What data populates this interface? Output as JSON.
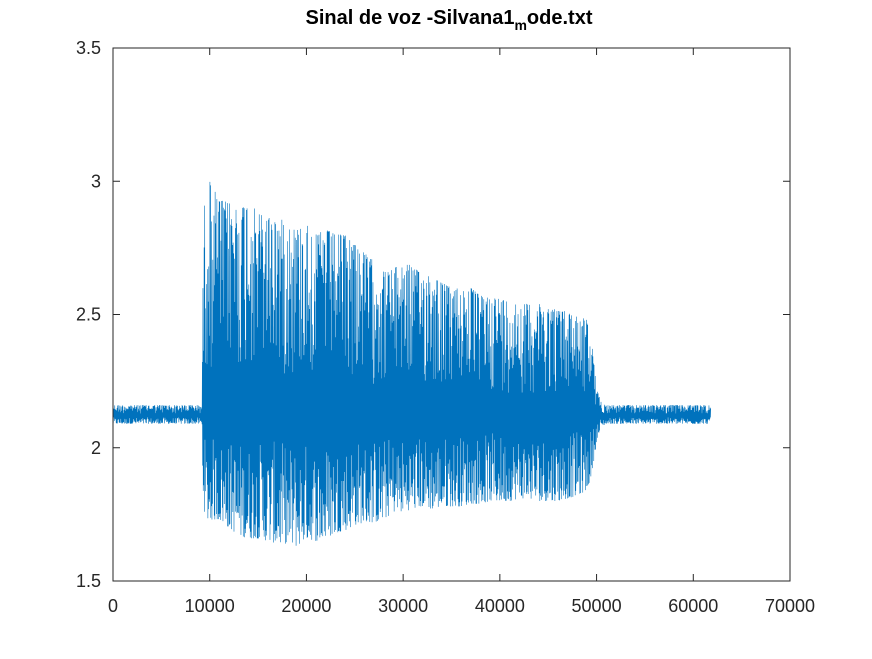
{
  "chart_data": {
    "type": "line",
    "title": "Sinal de voz -Silvana1",
    "title_subscript": "m",
    "title_suffix": "ode.txt",
    "xlabel": "",
    "ylabel": "",
    "xlim": [
      0,
      70000
    ],
    "ylim": [
      1.5,
      3.5
    ],
    "xticks": [
      0,
      10000,
      20000,
      30000,
      40000,
      50000,
      60000,
      70000
    ],
    "yticks": [
      1.5,
      2,
      2.5,
      3,
      3.5
    ],
    "xtick_labels": [
      "0",
      "10000",
      "20000",
      "30000",
      "40000",
      "50000",
      "60000",
      "70000"
    ],
    "ytick_labels": [
      "1.5",
      "2",
      "2.5",
      "3",
      "3.5"
    ],
    "grid": false,
    "legend": "none",
    "series_color": "#0072BD",
    "series": [
      {
        "samples": 61800,
        "baseline": 2.12,
        "envelope": {
          "x": [
            0,
            9200,
            9300,
            9500,
            10000,
            11000,
            12000,
            13000,
            14000,
            15000,
            16000,
            17000,
            18000,
            19000,
            20000,
            21000,
            22000,
            23000,
            24000,
            25000,
            26000,
            27000,
            28000,
            29000,
            30000,
            31000,
            32000,
            33000,
            34000,
            35000,
            36000,
            37000,
            38000,
            39000,
            40000,
            41000,
            42000,
            43000,
            44000,
            45000,
            46000,
            47000,
            48000,
            49000,
            49500,
            50000,
            50500,
            51000,
            55000,
            60000,
            61800
          ],
          "upper": [
            2.16,
            2.16,
            2.6,
            2.95,
            3.0,
            2.93,
            2.92,
            2.9,
            2.93,
            2.88,
            2.87,
            2.86,
            2.85,
            2.82,
            2.84,
            2.8,
            2.82,
            2.8,
            2.8,
            2.78,
            2.73,
            2.7,
            2.66,
            2.67,
            2.7,
            2.68,
            2.65,
            2.66,
            2.62,
            2.6,
            2.6,
            2.6,
            2.57,
            2.57,
            2.56,
            2.55,
            2.54,
            2.54,
            2.54,
            2.53,
            2.52,
            2.51,
            2.5,
            2.48,
            2.4,
            2.22,
            2.17,
            2.16,
            2.16,
            2.16,
            2.16
          ],
          "lower": [
            2.09,
            2.09,
            1.85,
            1.73,
            1.73,
            1.73,
            1.7,
            1.67,
            1.66,
            1.66,
            1.65,
            1.64,
            1.64,
            1.63,
            1.66,
            1.65,
            1.66,
            1.68,
            1.69,
            1.71,
            1.72,
            1.72,
            1.73,
            1.76,
            1.76,
            1.77,
            1.78,
            1.77,
            1.78,
            1.78,
            1.78,
            1.79,
            1.79,
            1.8,
            1.8,
            1.8,
            1.81,
            1.81,
            1.8,
            1.8,
            1.8,
            1.81,
            1.82,
            1.84,
            1.9,
            2.02,
            2.08,
            2.09,
            2.09,
            2.09,
            2.09
          ]
        }
      }
    ]
  }
}
